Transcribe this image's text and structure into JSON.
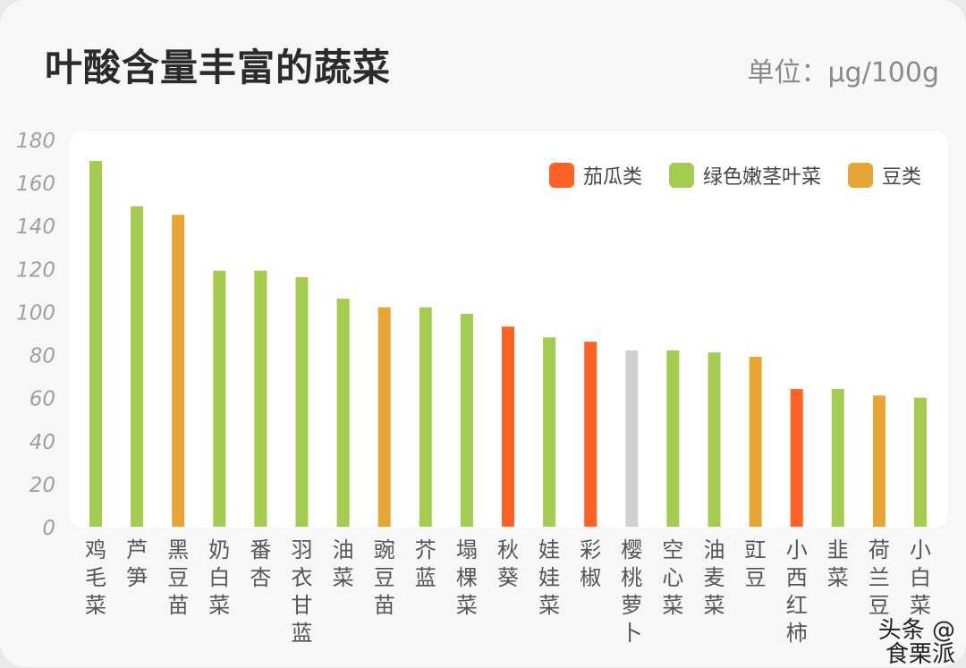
{
  "header": {
    "title": "叶酸含量丰富的蔬菜",
    "unit": "单位：μg/100g"
  },
  "watermark": "头条 @食栗派",
  "chart_data": {
    "type": "bar",
    "title": "叶酸含量丰富的蔬菜",
    "ylabel": "单位：μg/100g",
    "ylim": [
      0,
      180
    ],
    "yticks": [
      0,
      20,
      40,
      60,
      80,
      100,
      120,
      140,
      160,
      180
    ],
    "grid": false,
    "legend_position": "top-right",
    "legend": [
      {
        "name": "茄瓜类",
        "color": "#ff6224"
      },
      {
        "name": "绿色嫩茎叶菜",
        "color": "#a3cc51"
      },
      {
        "name": "豆类",
        "color": "#e6a534"
      }
    ],
    "categories": [
      "鸡毛菜",
      "芦笋",
      "黑豆苗",
      "奶白菜",
      "番杏",
      "羽衣甘蓝",
      "油菜",
      "豌豆苗",
      "芥蓝",
      "塌棵菜",
      "秋葵",
      "娃娃菜",
      "彩椒",
      "樱桃萝卜",
      "空心菜",
      "油麦菜",
      "豇豆",
      "小西红柿",
      "韭菜",
      "荷兰豆",
      "小白菜"
    ],
    "values": [
      170,
      149,
      145,
      119,
      119,
      116,
      106,
      102,
      102,
      99,
      93,
      88,
      86,
      82,
      82,
      81,
      79,
      64,
      64,
      61,
      60
    ],
    "bar_colors": [
      "#a3cc51",
      "#a3cc51",
      "#e6a534",
      "#a3cc51",
      "#a3cc51",
      "#a3cc51",
      "#a3cc51",
      "#e6a534",
      "#a3cc51",
      "#a3cc51",
      "#ff6224",
      "#a3cc51",
      "#ff6224",
      "#d0d0d0",
      "#a3cc51",
      "#a3cc51",
      "#e6a534",
      "#ff6224",
      "#a3cc51",
      "#e6a534",
      "#a3cc51"
    ]
  }
}
